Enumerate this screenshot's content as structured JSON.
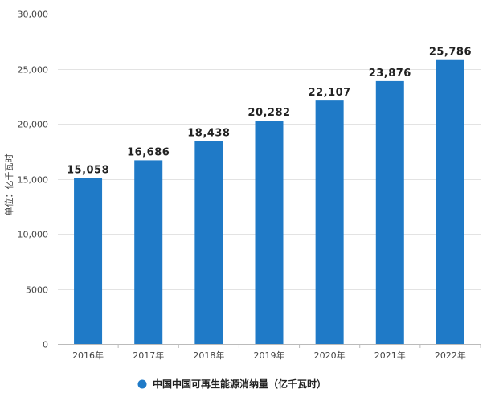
{
  "chart_data": {
    "type": "bar",
    "categories": [
      "2016年",
      "2017年",
      "2018年",
      "2019年",
      "2020年",
      "2021年",
      "2022年"
    ],
    "series": [
      {
        "name": "中国中国可再生能源消纳量（亿千瓦时）",
        "values": [
          15058,
          16686,
          18438,
          20282,
          22107,
          23876,
          25786
        ],
        "color": "#1f7ac7"
      }
    ],
    "data_labels": [
      "15,058",
      "16,686",
      "18,438",
      "20,282",
      "22,107",
      "23,876",
      "25,786"
    ],
    "ylabel": "单位：亿千瓦时",
    "ylim": [
      0,
      30000
    ],
    "yticks": [
      0,
      5000,
      10000,
      15000,
      20000,
      25000,
      30000
    ],
    "ytick_labels": [
      "0",
      "5000",
      "10,000",
      "15,000",
      "20,000",
      "25,000",
      "30,000"
    ],
    "grid": true,
    "legend_position": "bottom"
  }
}
